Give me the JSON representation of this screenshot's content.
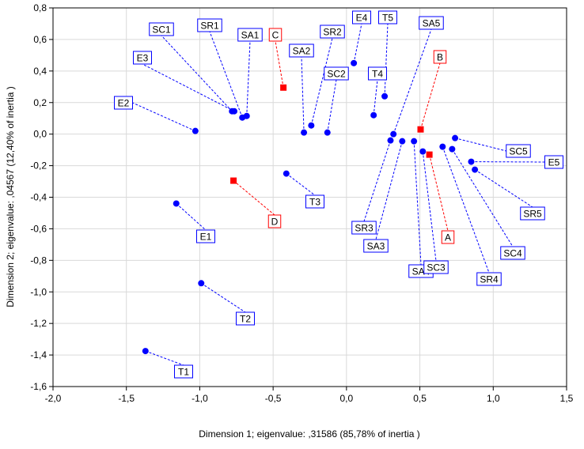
{
  "chart_data": {
    "type": "scatter",
    "xlabel": "Dimension 1; eigenvalue:  ,31586 (85,78% of inertia )",
    "ylabel": "Dimension 2; eigenvalue:  ,04567 (12,40% of inertia )",
    "xlim": [
      -2.0,
      1.5
    ],
    "ylim": [
      -1.6,
      0.8
    ],
    "x_ticks": [
      -2.0,
      -1.5,
      -1.0,
      -0.5,
      0.0,
      0.5,
      1.0,
      1.5
    ],
    "x_tick_labels": [
      "-2,0",
      "-1,5",
      "-1,0",
      "-0,5",
      "0,0",
      "0,5",
      "1,0",
      "1,5"
    ],
    "y_ticks": [
      0.8,
      0.6,
      0.4,
      0.2,
      0.0,
      -0.2,
      -0.4,
      -0.6,
      -0.8,
      -1.0,
      -1.2,
      -1.4,
      -1.6
    ],
    "y_tick_labels": [
      "0,8",
      "0,6",
      "0,4",
      "0,2",
      "0,0",
      "-0,2",
      "-0,4",
      "-0,6",
      "-0,8",
      "-1,0",
      "-1,2",
      "-1,4",
      "-1,6"
    ],
    "grid": true,
    "colors": {
      "row_points": "#0000ff",
      "column_points": "#ff0000"
    },
    "series": [
      {
        "marker": "circle",
        "color": "#0000ff",
        "points": [
          {
            "label": "SC1",
            "x": -0.78,
            "y": 0.145
          },
          {
            "label": "SR1",
            "x": -0.71,
            "y": 0.105
          },
          {
            "label": "SA1",
            "x": -0.68,
            "y": 0.115
          },
          {
            "label": "E3",
            "x": -0.765,
            "y": 0.145
          },
          {
            "label": "E2",
            "x": -1.03,
            "y": 0.02
          },
          {
            "label": "SA2",
            "x": -0.29,
            "y": 0.01
          },
          {
            "label": "SR2",
            "x": -0.24,
            "y": 0.055
          },
          {
            "label": "SC2",
            "x": -0.13,
            "y": 0.01
          },
          {
            "label": "E4",
            "x": 0.05,
            "y": 0.45
          },
          {
            "label": "T5",
            "x": 0.26,
            "y": 0.24
          },
          {
            "label": "T4",
            "x": 0.185,
            "y": 0.12
          },
          {
            "label": "SA5",
            "x": 0.32,
            "y": 0.0
          },
          {
            "label": "T3",
            "x": -0.41,
            "y": -0.25
          },
          {
            "label": "E1",
            "x": -1.16,
            "y": -0.44
          },
          {
            "label": "T2",
            "x": -0.99,
            "y": -0.945
          },
          {
            "label": "T1",
            "x": -1.37,
            "y": -1.375
          },
          {
            "label": "SR3",
            "x": 0.3,
            "y": -0.04
          },
          {
            "label": "SA3",
            "x": 0.38,
            "y": -0.045
          },
          {
            "label": "SA4",
            "x": 0.46,
            "y": -0.045
          },
          {
            "label": "SC3",
            "x": 0.52,
            "y": -0.11
          },
          {
            "label": "SR4",
            "x": 0.655,
            "y": -0.08
          },
          {
            "label": "SC4",
            "x": 0.72,
            "y": -0.095
          },
          {
            "label": "SC5",
            "x": 0.74,
            "y": -0.025
          },
          {
            "label": "E5",
            "x": 0.85,
            "y": -0.175
          },
          {
            "label": "SR5",
            "x": 0.875,
            "y": -0.225
          }
        ]
      },
      {
        "marker": "square",
        "color": "#ff0000",
        "points": [
          {
            "label": "C",
            "x": -0.43,
            "y": 0.295
          },
          {
            "label": "B",
            "x": 0.505,
            "y": 0.03
          },
          {
            "label": "A",
            "x": 0.565,
            "y": -0.13
          },
          {
            "label": "D",
            "x": -0.77,
            "y": -0.295
          }
        ]
      }
    ]
  }
}
